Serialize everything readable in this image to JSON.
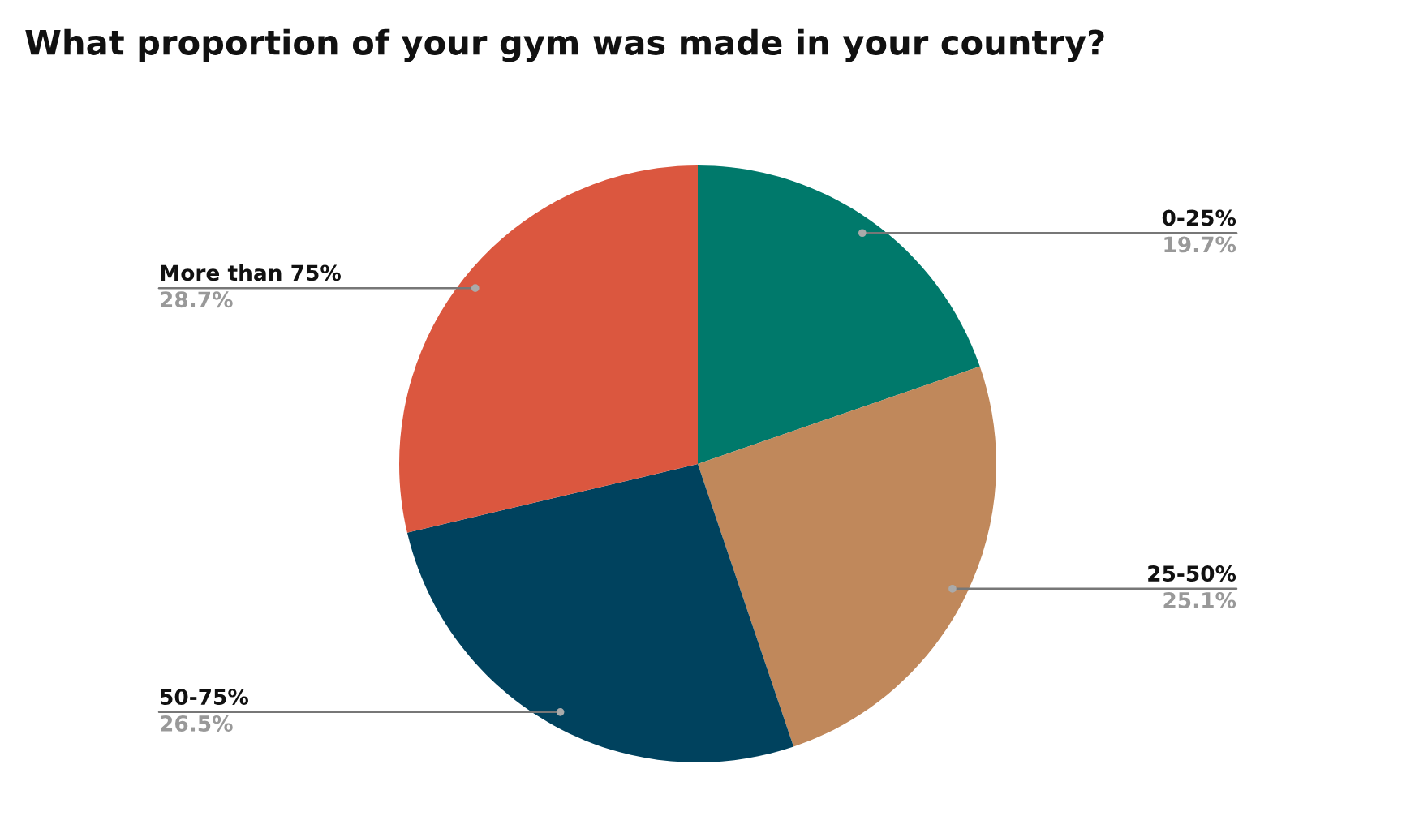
{
  "chart_data": {
    "type": "pie",
    "title": "What proportion of your gym was made in your country?",
    "categories": [
      "0-25%",
      "25-50%",
      "50-75%",
      "More than 75%"
    ],
    "values": [
      19.7,
      25.1,
      26.5,
      28.7
    ],
    "colors": [
      "#00796b",
      "#c0885b",
      "#00425e",
      "#db573f"
    ],
    "value_labels": [
      "19.7%",
      "25.1%",
      "26.5%",
      "28.7%"
    ]
  }
}
